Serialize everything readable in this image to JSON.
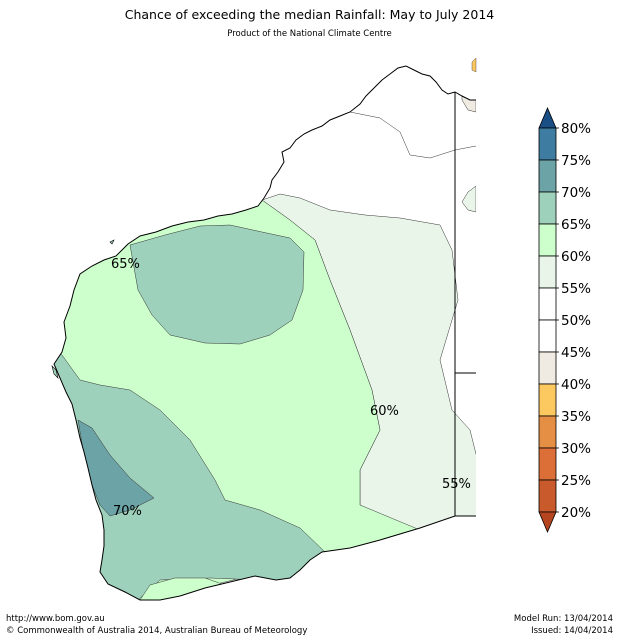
{
  "header": {
    "title": "Chance of exceeding the median Rainfall: May to July 2014",
    "subtitle": "Product of the National Climate Centre"
  },
  "map": {
    "region": "Western Australia",
    "contour_labels": [
      "65%",
      "60%",
      "55%",
      "70%"
    ],
    "legend_colors": {
      "c0_20": "#b5451e",
      "c20_25": "#c85a2c",
      "c25_30": "#dc6f37",
      "c30_35": "#e58f45",
      "c35_40": "#fcc860",
      "c40_45": "#efebe3",
      "c45_50": "#ffffff",
      "c50_55": "#ffffff",
      "c55_60": "#e8f5e8",
      "c60_65": "#ccffcc",
      "c65_70": "#9ed1bb",
      "c70_75": "#6ca3a6",
      "c75_80": "#3e7da1",
      "c80_plus": "#1a4f85"
    }
  },
  "colorbar": {
    "ticks": [
      "80%",
      "75%",
      "70%",
      "65%",
      "60%",
      "55%",
      "50%",
      "45%",
      "40%",
      "35%",
      "30%",
      "25%",
      "20%"
    ],
    "colors_top_to_bottom": [
      "#1a4f85",
      "#3e7da1",
      "#6ca3a6",
      "#9ed1bb",
      "#ccffcc",
      "#e8f5e8",
      "#ffffff",
      "#ffffff",
      "#efebe3",
      "#fcc860",
      "#e58f45",
      "#dc6f37",
      "#c85a2c",
      "#b5451e"
    ]
  },
  "footer": {
    "url": "http://www.bom.gov.au",
    "copyright": "©  Commonwealth of Australia 2014, Australian Bureau of Meteorology",
    "model_run": "Model Run: 13/04/2014",
    "issued": "Issued: 14/04/2014"
  }
}
